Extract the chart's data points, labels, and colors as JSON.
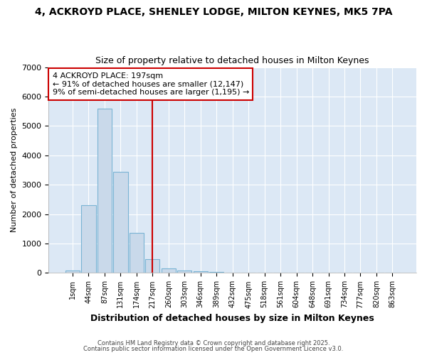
{
  "title": "4, ACKROYD PLACE, SHENLEY LODGE, MILTON KEYNES, MK5 7PA",
  "subtitle": "Size of property relative to detached houses in Milton Keynes",
  "xlabel": "Distribution of detached houses by size in Milton Keynes",
  "ylabel": "Number of detached properties",
  "bin_labels": [
    "1sqm",
    "44sqm",
    "87sqm",
    "131sqm",
    "174sqm",
    "217sqm",
    "260sqm",
    "303sqm",
    "346sqm",
    "389sqm",
    "432sqm",
    "475sqm",
    "518sqm",
    "561sqm",
    "604sqm",
    "648sqm",
    "691sqm",
    "734sqm",
    "777sqm",
    "820sqm",
    "863sqm"
  ],
  "bar_heights": [
    75,
    2300,
    5580,
    3450,
    1360,
    470,
    160,
    75,
    50,
    30,
    10,
    0,
    0,
    0,
    0,
    0,
    0,
    0,
    0,
    0,
    0
  ],
  "bar_color": "#c9d9ea",
  "bar_edgecolor": "#7ab4d4",
  "vline_x": 5,
  "vline_color": "#cc0000",
  "annotation_text": "4 ACKROYD PLACE: 197sqm\n← 91% of detached houses are smaller (12,147)\n9% of semi-detached houses are larger (1,195) →",
  "annotation_box_facecolor": "#ffffff",
  "annotation_box_edgecolor": "#cc0000",
  "ylim": [
    0,
    7000
  ],
  "yticks": [
    0,
    1000,
    2000,
    3000,
    4000,
    5000,
    6000,
    7000
  ],
  "plot_bg_color": "#dce8f5",
  "fig_bg_color": "#ffffff",
  "grid_color": "#ffffff",
  "footer_line1": "Contains HM Land Registry data © Crown copyright and database right 2025.",
  "footer_line2": "Contains public sector information licensed under the Open Government Licence v3.0."
}
